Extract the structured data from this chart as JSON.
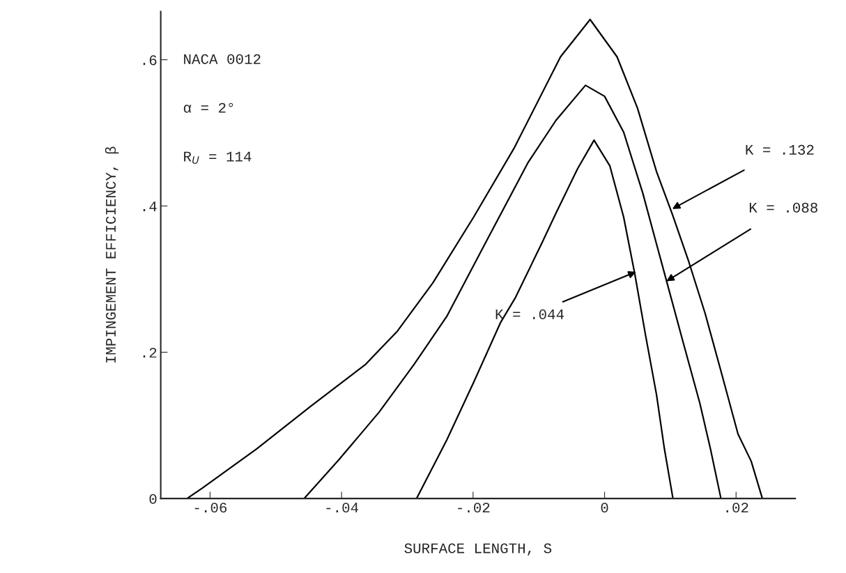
{
  "chart_data": {
    "type": "line",
    "xlabel": "SURFACE LENGTH, S",
    "ylabel": "IMPINGEMENT EFFICIENCY, β",
    "series": [
      {
        "color": "#000000",
        "x": [
          -0.0635,
          -0.0612,
          -0.0529,
          -0.0447,
          -0.0364,
          -0.0315,
          -0.0261,
          -0.0199,
          -0.0137,
          -0.0067,
          -0.0022,
          0.0019,
          0.005,
          0.0079,
          0.0103,
          0.0128,
          0.0153,
          0.0178,
          0.0203,
          0.0223,
          0.024
        ],
        "values": [
          0,
          0.014,
          0.068,
          0.126,
          0.183,
          0.229,
          0.295,
          0.385,
          0.48,
          0.604,
          0.655,
          0.604,
          0.534,
          0.447,
          0.389,
          0.324,
          0.253,
          0.171,
          0.088,
          0.051,
          0
        ]
      },
      {
        "color": "#000000",
        "x": [
          -0.0457,
          -0.0405,
          -0.0343,
          -0.029,
          -0.024,
          -0.0182,
          -0.0116,
          -0.0074,
          -0.0029,
          0.0,
          0.0029,
          0.0058,
          0.0079,
          0.0095,
          0.012,
          0.0145,
          0.0161,
          0.0177
        ],
        "values": [
          0,
          0.052,
          0.118,
          0.183,
          0.249,
          0.348,
          0.46,
          0.517,
          0.565,
          0.55,
          0.501,
          0.418,
          0.348,
          0.295,
          0.212,
          0.13,
          0.068,
          0
        ]
      },
      {
        "color": "#000000",
        "x": [
          -0.0286,
          -0.024,
          -0.0199,
          -0.0158,
          -0.0136,
          -0.0096,
          -0.0074,
          -0.0041,
          -0.0016,
          0.0008,
          0.0029,
          0.0046,
          0.0062,
          0.0079,
          0.0091,
          0.0104
        ],
        "values": [
          0,
          0.08,
          0.159,
          0.241,
          0.274,
          0.348,
          0.39,
          0.451,
          0.49,
          0.455,
          0.385,
          0.307,
          0.225,
          0.142,
          0.068,
          0
        ]
      }
    ],
    "xlim": [
      -0.0675,
      0.029
    ],
    "ylim": [
      0,
      0.666
    ],
    "xticks": [
      {
        "value": -0.06,
        "label": "-.06"
      },
      {
        "value": -0.04,
        "label": "-.04"
      },
      {
        "value": -0.02,
        "label": "-.02"
      },
      0,
      {
        "value": 0.02,
        "label": ".02"
      }
    ],
    "yticks": [
      0,
      {
        "value": 0.2,
        "label": ".2"
      },
      {
        "value": 0.4,
        "label": ".4"
      },
      {
        "value": 0.6,
        "label": ".6"
      }
    ],
    "grid": false,
    "legend": false,
    "marker": "none",
    "line_style": "solid",
    "annotations": [
      "NACA 0012",
      "α = 2°",
      "R$_{U}$ = 114",
      {
        "text": "K = .132",
        "x": 0.0103,
        "y": 0.396
      },
      {
        "text": "K = .088",
        "x": 0.0094,
        "y": 0.297
      },
      {
        "text": "K = .044",
        "x": 0.0048,
        "y": 0.31
      }
    ]
  }
}
